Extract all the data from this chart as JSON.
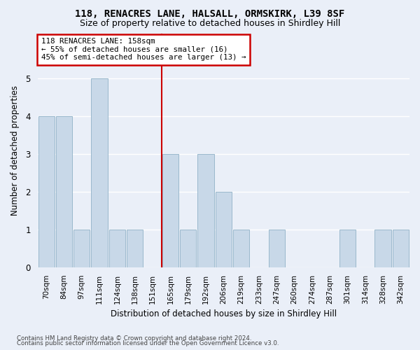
{
  "title1": "118, RENACRES LANE, HALSALL, ORMSKIRK, L39 8SF",
  "title2": "Size of property relative to detached houses in Shirdley Hill",
  "xlabel": "Distribution of detached houses by size in Shirdley Hill",
  "ylabel": "Number of detached properties",
  "footer1": "Contains HM Land Registry data © Crown copyright and database right 2024.",
  "footer2": "Contains public sector information licensed under the Open Government Licence v3.0.",
  "bin_labels": [
    "70sqm",
    "84sqm",
    "97sqm",
    "111sqm",
    "124sqm",
    "138sqm",
    "151sqm",
    "165sqm",
    "179sqm",
    "192sqm",
    "206sqm",
    "219sqm",
    "233sqm",
    "247sqm",
    "260sqm",
    "274sqm",
    "287sqm",
    "301sqm",
    "314sqm",
    "328sqm",
    "342sqm"
  ],
  "bar_heights": [
    4,
    4,
    1,
    5,
    1,
    1,
    0,
    3,
    1,
    3,
    2,
    1,
    0,
    1,
    0,
    0,
    0,
    1,
    0,
    1,
    1
  ],
  "bar_color": "#c8d8e8",
  "bar_edge_color": "#9ab8cc",
  "ref_line_index": 6.5,
  "ref_line_color": "#cc0000",
  "annotation_line1": "118 RENACRES LANE: 158sqm",
  "annotation_line2": "← 55% of detached houses are smaller (16)",
  "annotation_line3": "45% of semi-detached houses are larger (13) →",
  "annotation_box_color": "#cc0000",
  "ylim": [
    0,
    6.2
  ],
  "yticks": [
    0,
    1,
    2,
    3,
    4,
    5
  ],
  "background_color": "#eaeff8",
  "plot_bg_color": "#eaeff8",
  "grid_color": "#ffffff",
  "title1_fontsize": 10,
  "title2_fontsize": 9
}
